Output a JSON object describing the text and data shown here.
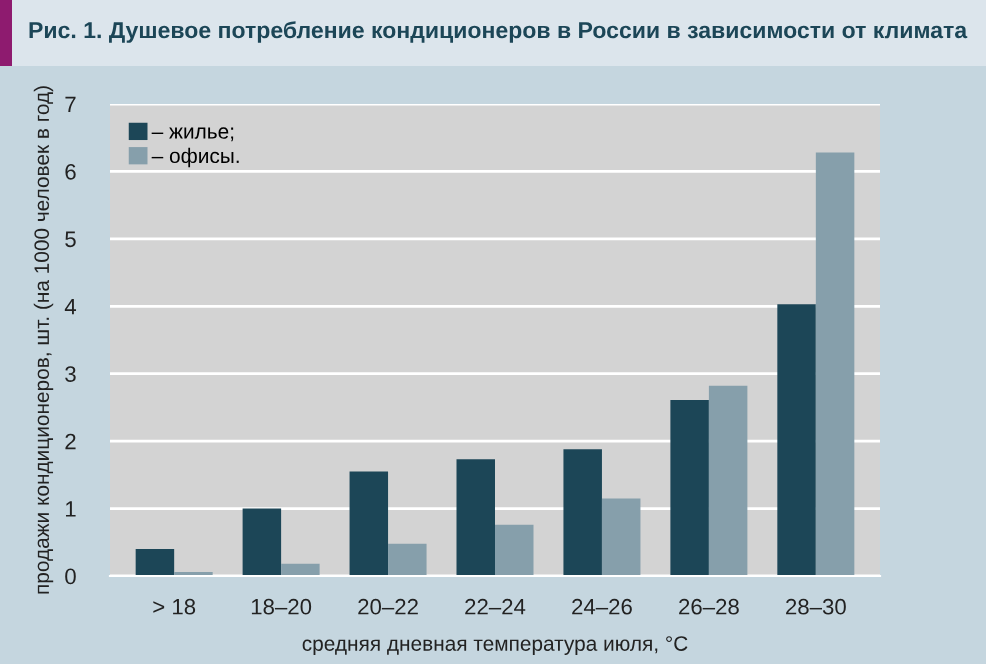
{
  "chart_data": {
    "type": "bar",
    "title": "Рис. 1. Душевое потребление кондиционеров в России в зависимости от климата",
    "xlabel": "средняя дневная температура июля, °С",
    "ylabel": "продажи кондиционеров, шт. (на 1000 человек в год)",
    "categories": [
      "> 18",
      "18–20",
      "20–22",
      "22–24",
      "24–26",
      "26–28",
      "28–30"
    ],
    "series": [
      {
        "name": "– жилье;",
        "color": "#1c4657",
        "values": [
          0.4,
          1.0,
          1.55,
          1.73,
          1.88,
          2.61,
          4.03
        ]
      },
      {
        "name": "– офисы.",
        "color": "#869fab",
        "values": [
          0.06,
          0.18,
          0.48,
          0.76,
          1.15,
          2.82,
          6.28
        ]
      }
    ],
    "ylim": [
      0,
      7
    ],
    "yticks": [
      0,
      1,
      2,
      3,
      4,
      5,
      6,
      7
    ],
    "grid": "y",
    "legend": "top left"
  }
}
